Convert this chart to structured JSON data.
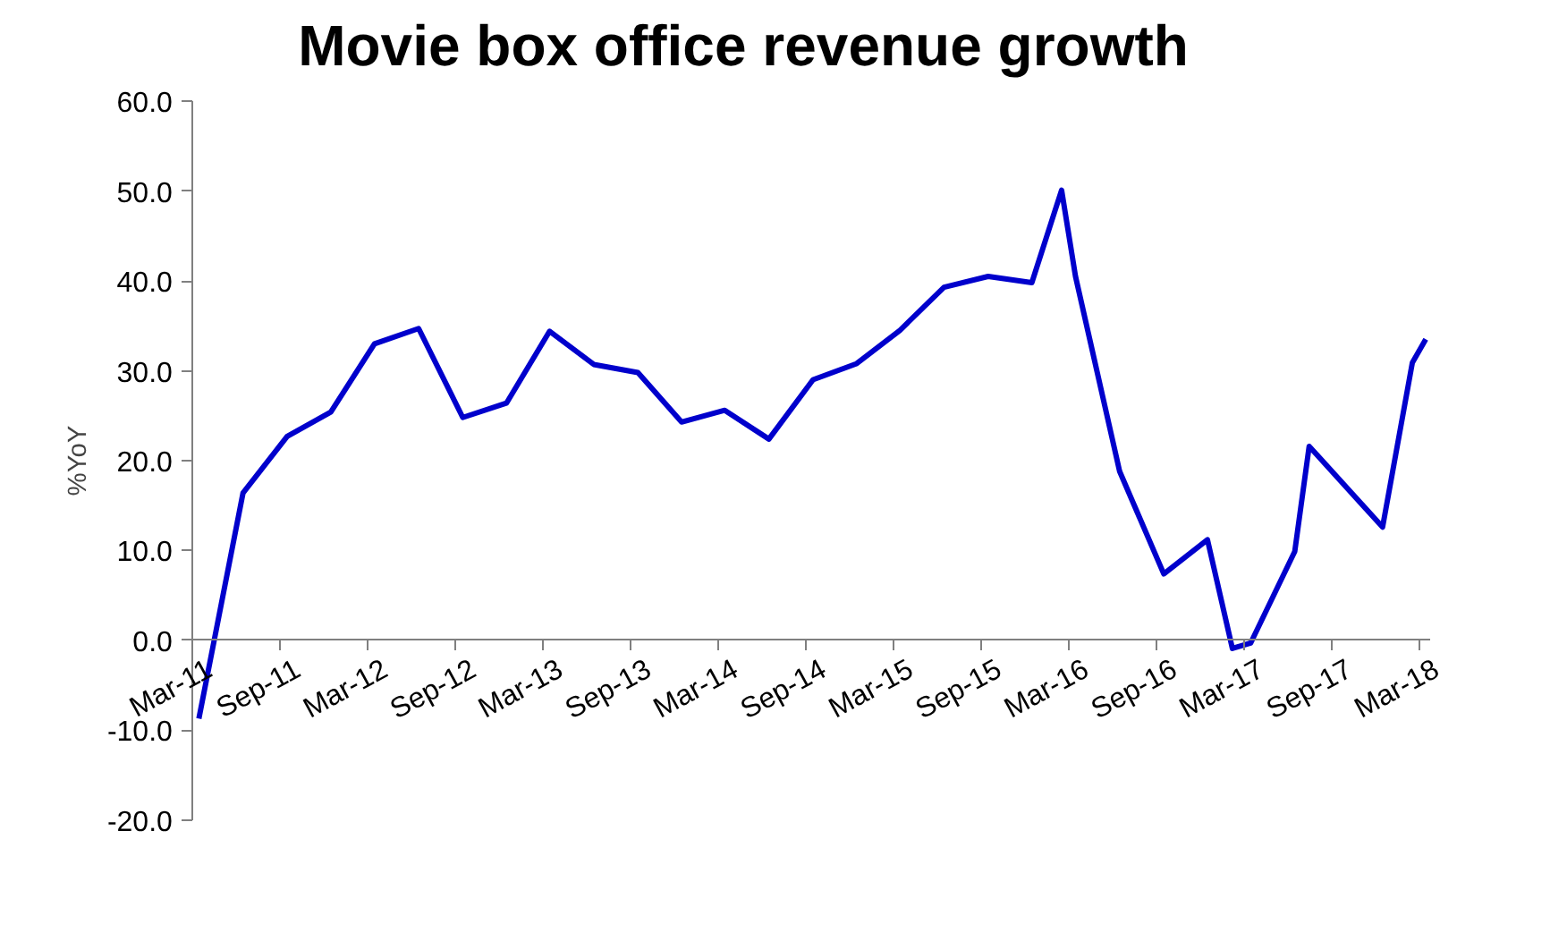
{
  "chart_data": {
    "type": "line",
    "title": "Movie box office revenue growth",
    "ylabel": "%YoY",
    "x": [
      "2011-03-15",
      "2011-06-15",
      "2011-09-15",
      "2011-12-15",
      "2012-03-15",
      "2012-06-15",
      "2012-09-15",
      "2012-12-15",
      "2013-03-15",
      "2013-06-15",
      "2013-09-15",
      "2013-12-15",
      "2014-03-15",
      "2014-06-15",
      "2014-09-15",
      "2014-12-15",
      "2015-03-15",
      "2015-06-15",
      "2015-09-15",
      "2015-12-15",
      "2016-02-15",
      "2016-03-15",
      "2016-06-15",
      "2016-09-15",
      "2016-12-15",
      "2017-02-05",
      "2017-03-15",
      "2017-06-15",
      "2017-07-15",
      "2017-12-15",
      "2018-02-15",
      "2018-03-15"
    ],
    "series": [
      {
        "color": "#0000cc",
        "values": [
          -8.7,
          16.4,
          22.7,
          25.4,
          33.0,
          34.7,
          24.8,
          26.4,
          34.4,
          30.7,
          29.8,
          24.3,
          25.6,
          22.4,
          29.0,
          30.8,
          34.5,
          39.3,
          40.5,
          39.8,
          50.1,
          40.5,
          18.8,
          7.4,
          11.2,
          -0.9,
          -0.3,
          9.9,
          21.6,
          12.6,
          30.9,
          33.5
        ]
      }
    ],
    "xlim": [
      "2011-03-01",
      "2018-03-25"
    ],
    "xticks": [
      {
        "value": "2011-03-01",
        "label": "Mar-11"
      },
      {
        "value": "2011-09-01",
        "label": "Sep-11"
      },
      {
        "value": "2012-03-01",
        "label": "Mar-12"
      },
      {
        "value": "2012-09-01",
        "label": "Sep-12"
      },
      {
        "value": "2013-03-01",
        "label": "Mar-13"
      },
      {
        "value": "2013-09-01",
        "label": "Sep-13"
      },
      {
        "value": "2014-03-01",
        "label": "Mar-14"
      },
      {
        "value": "2014-09-01",
        "label": "Sep-14"
      },
      {
        "value": "2015-03-01",
        "label": "Mar-15"
      },
      {
        "value": "2015-09-01",
        "label": "Sep-15"
      },
      {
        "value": "2016-03-01",
        "label": "Mar-16"
      },
      {
        "value": "2016-09-01",
        "label": "Sep-16"
      },
      {
        "value": "2017-03-01",
        "label": "Mar-17"
      },
      {
        "value": "2017-09-01",
        "label": "Sep-17"
      },
      {
        "value": "2018-03-01",
        "label": "Mar-18"
      }
    ],
    "ylim": [
      -20,
      60
    ],
    "yticks": [
      {
        "value": -20,
        "label": "-20.0"
      },
      {
        "value": -10,
        "label": "-10.0"
      },
      {
        "value": 0,
        "label": "0.0"
      },
      {
        "value": 10,
        "label": "10.0"
      },
      {
        "value": 20,
        "label": "20.0"
      },
      {
        "value": 30,
        "label": "30.0"
      },
      {
        "value": 40,
        "label": "40.0"
      },
      {
        "value": 50,
        "label": "50.0"
      },
      {
        "value": 60,
        "label": "60.0"
      }
    ],
    "marker": "none",
    "line_style": "solid"
  }
}
